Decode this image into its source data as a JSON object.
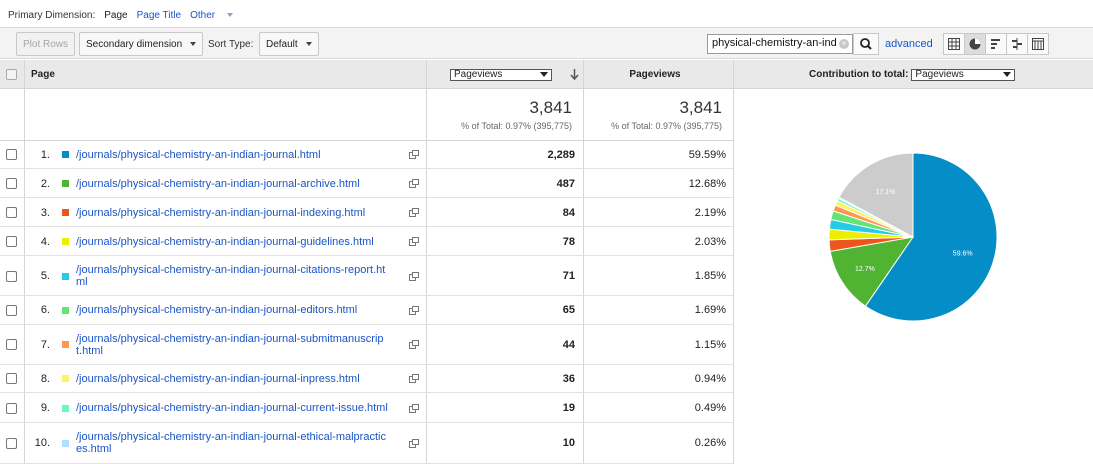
{
  "primary_dimension": {
    "label": "Primary Dimension:",
    "options": [
      "Page",
      "Page Title",
      "Other"
    ],
    "selected": "Page"
  },
  "toolbar": {
    "plot_rows": "Plot Rows",
    "secondary_dimension": "Secondary dimension",
    "sort_type_label": "Sort Type:",
    "sort_type_value": "Default",
    "search_value": "physical-chemistry-an-ind",
    "advanced": "advanced",
    "view_icons": [
      "data-table-icon",
      "pie-chart-icon",
      "performance-icon",
      "comparison-icon",
      "pivot-icon"
    ]
  },
  "table": {
    "headers": {
      "page": "Page",
      "metric_select": "Pageviews",
      "pageviews": "Pageviews",
      "contribution_label": "Contribution to total:",
      "contribution_select": "Pageviews"
    },
    "totals": {
      "value1": "3,841",
      "pct1": "% of Total: 0.97% (395,775)",
      "value2": "3,841",
      "pct2": "% of Total: 0.97% (395,775)"
    },
    "rows": [
      {
        "num": "1.",
        "page": "/journals/physical-chemistry-an-indian-journal.html",
        "pageviews": "2,289",
        "pct": "59.59%",
        "color": "#058dc7"
      },
      {
        "num": "2.",
        "page": "/journals/physical-chemistry-an-indian-journal-archive.html",
        "pageviews": "487",
        "pct": "12.68%",
        "color": "#50b432"
      },
      {
        "num": "3.",
        "page": "/journals/physical-chemistry-an-indian-journal-indexing.html",
        "pageviews": "84",
        "pct": "2.19%",
        "color": "#ed561b"
      },
      {
        "num": "4.",
        "page": "/journals/physical-chemistry-an-indian-journal-guidelines.html",
        "pageviews": "78",
        "pct": "2.03%",
        "color": "#edef00"
      },
      {
        "num": "5.",
        "page": "/journals/physical-chemistry-an-indian-journal-citations-report.ht\nml",
        "pageviews": "71",
        "pct": "1.85%",
        "color": "#24cbe5"
      },
      {
        "num": "6.",
        "page": "/journals/physical-chemistry-an-indian-journal-editors.html",
        "pageviews": "65",
        "pct": "1.69%",
        "color": "#64e572"
      },
      {
        "num": "7.",
        "page": "/journals/physical-chemistry-an-indian-journal-submitmanuscrip\nt.html",
        "pageviews": "44",
        "pct": "1.15%",
        "color": "#ff9655"
      },
      {
        "num": "8.",
        "page": "/journals/physical-chemistry-an-indian-journal-inpress.html",
        "pageviews": "36",
        "pct": "0.94%",
        "color": "#fff263"
      },
      {
        "num": "9.",
        "page": "/journals/physical-chemistry-an-indian-journal-current-issue.html",
        "pageviews": "19",
        "pct": "0.49%",
        "color": "#6af9c4"
      },
      {
        "num": "10.",
        "page": "/journals/physical-chemistry-an-indian-journal-ethical-malpractic\nes.html",
        "pageviews": "10",
        "pct": "0.26%",
        "color": "#b2deff"
      }
    ]
  },
  "pie": {
    "other_color": "#cccccc",
    "label_first": "59.6%",
    "label_second": "12.7%",
    "label_other": "17.1%",
    "slices": [
      59.59,
      12.68,
      2.19,
      2.03,
      1.85,
      1.69,
      1.15,
      0.94,
      0.49,
      0.26,
      17.13
    ]
  }
}
